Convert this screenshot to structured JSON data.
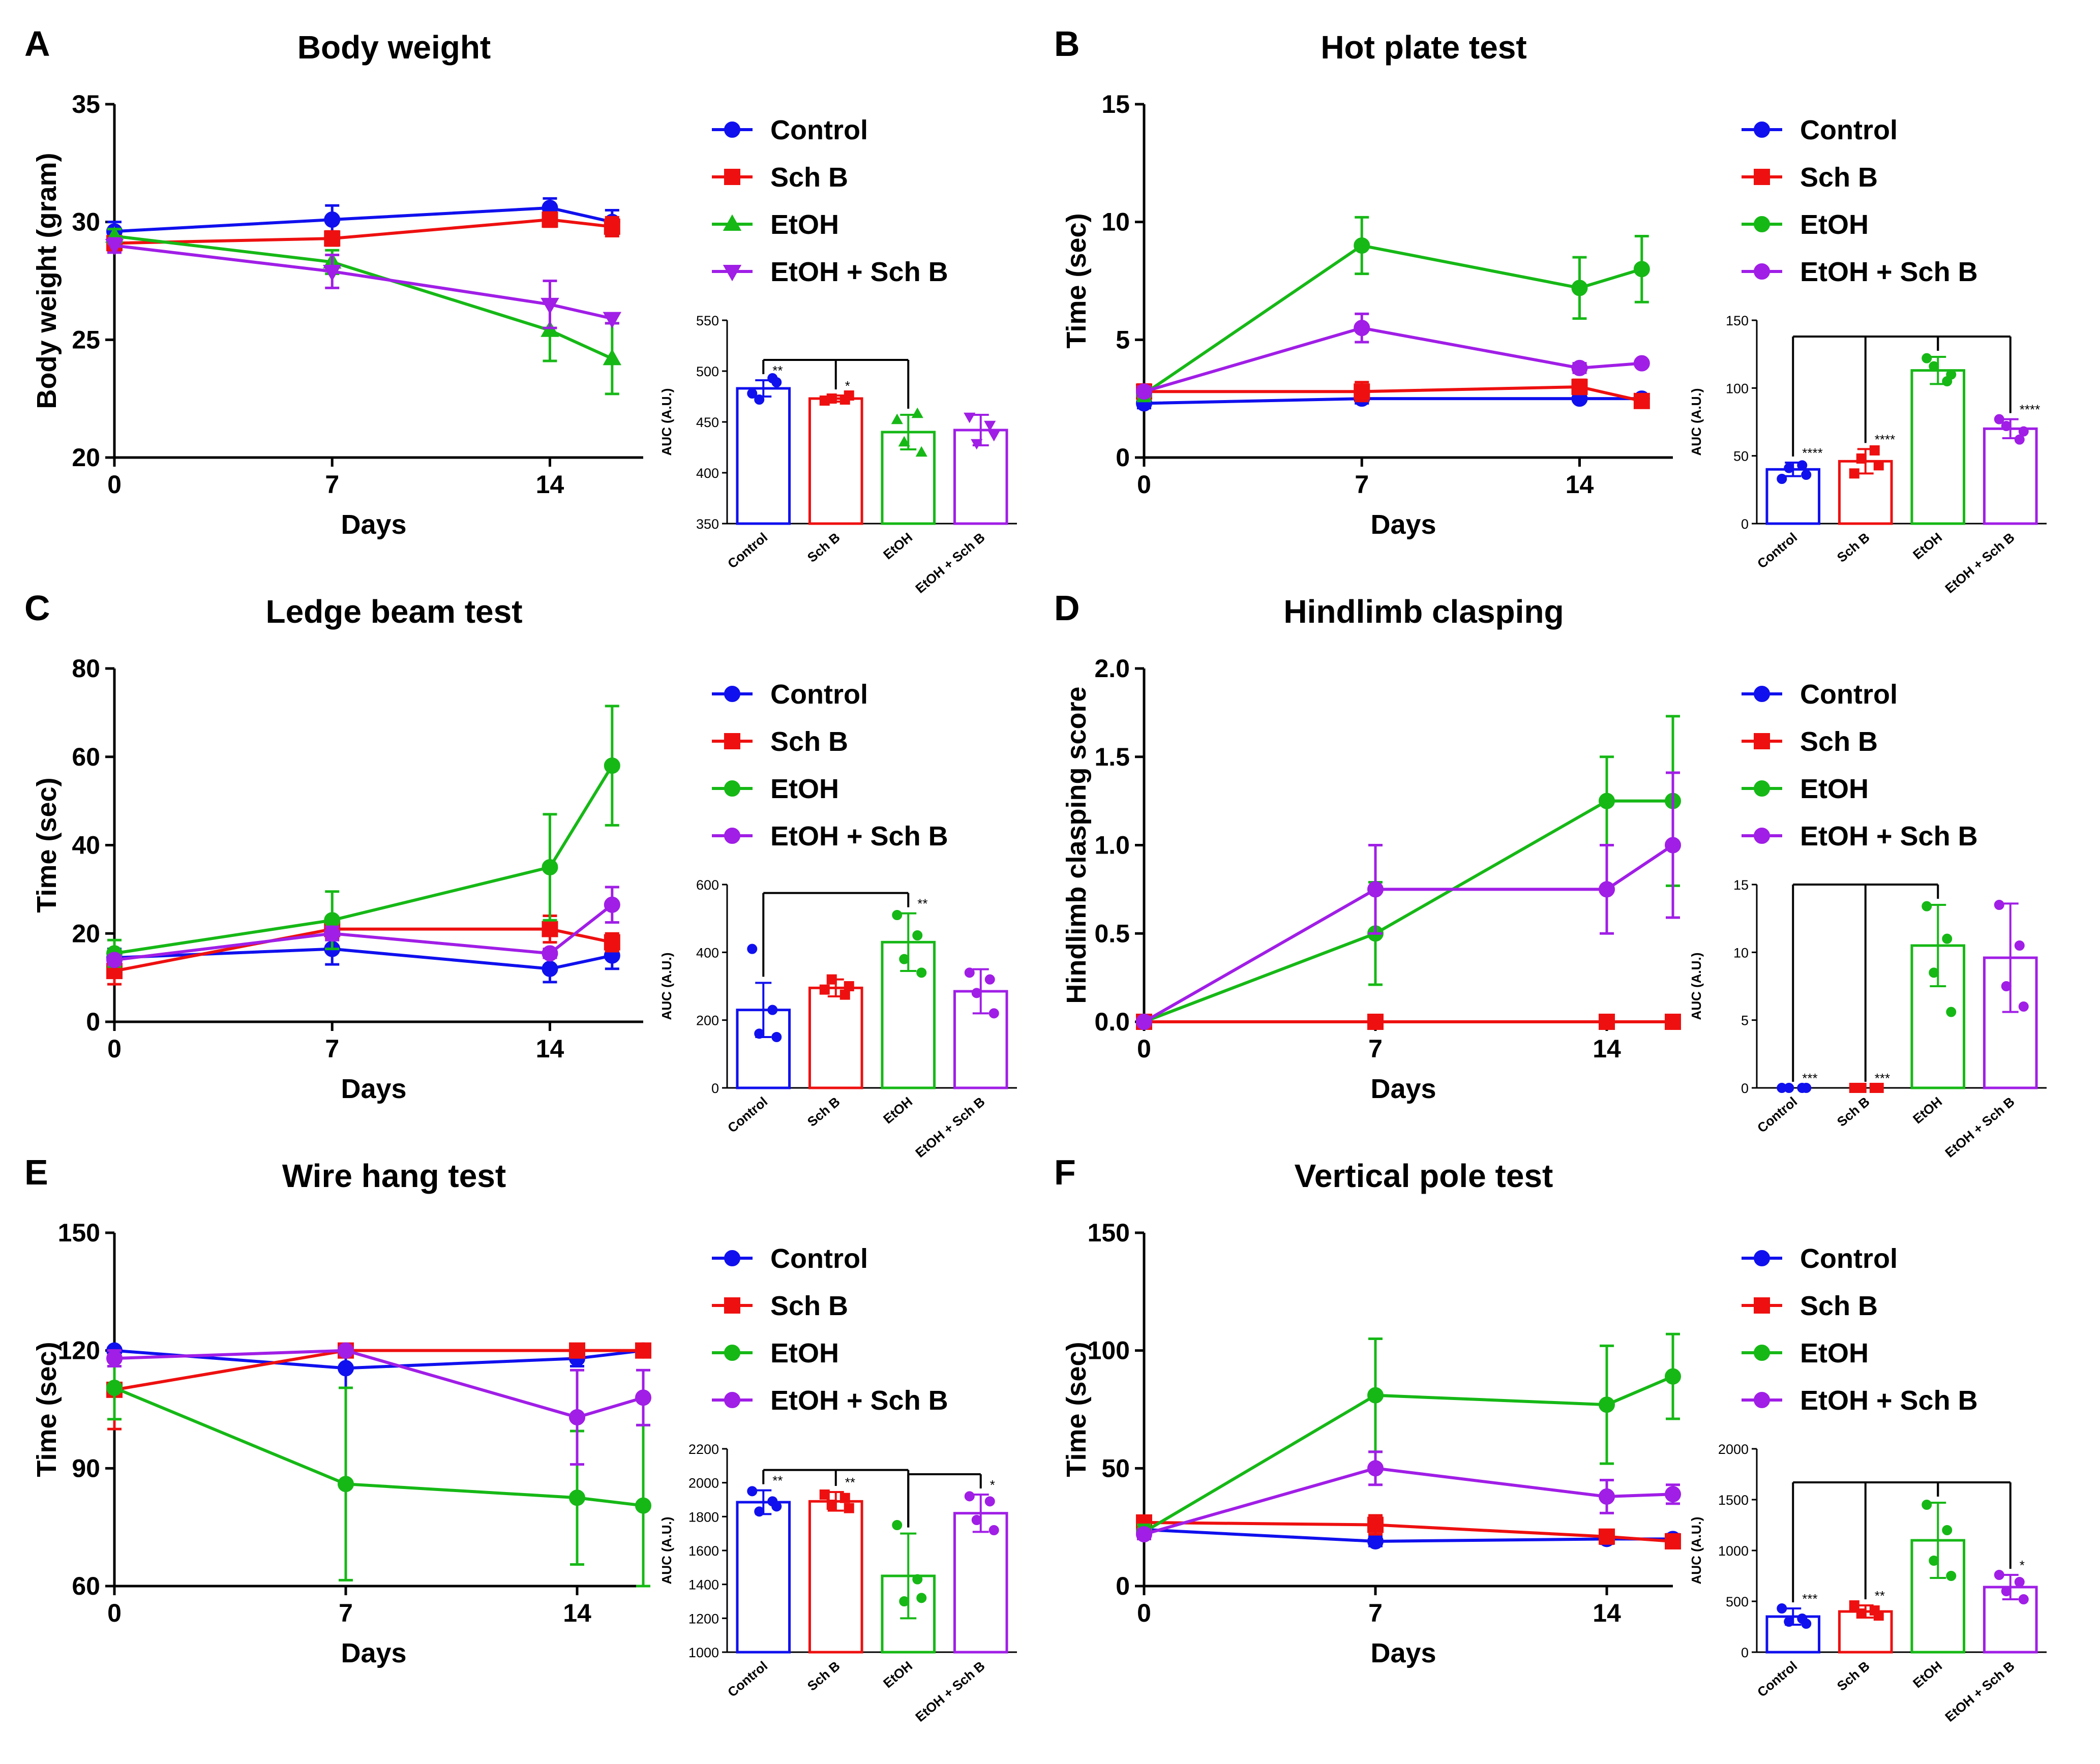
{
  "figure": {
    "description_free": true
  },
  "group_colors": {
    "Control": "#1010ee",
    "Sch B": "#ee1010",
    "EtOH": "#16b816",
    "EtOH + Sch B": "#a01ee6"
  },
  "chart_data": [
    {
      "id": "A",
      "panel_letter": "A",
      "title": "Body weight",
      "type": "line",
      "xlabel": "Days",
      "ylabel": "Body weight (gram)",
      "xlim": [
        0,
        17
      ],
      "ylim": [
        20,
        35
      ],
      "xticks": [
        0,
        7,
        14
      ],
      "yticks": [
        20,
        25,
        30,
        35
      ],
      "markers": {
        "Control": "circle",
        "Sch B": "square",
        "EtOH": "triangle-up",
        "EtOH + Sch B": "triangle-down"
      },
      "legend": [
        "Control",
        "Sch B",
        "EtOH",
        "EtOH + Sch B"
      ],
      "x": [
        0,
        7,
        14,
        16
      ],
      "series": [
        {
          "name": "Control",
          "values": [
            29.6,
            30.1,
            30.6,
            30.0
          ],
          "errors": [
            0.4,
            0.6,
            0.4,
            0.5
          ]
        },
        {
          "name": "Sch B",
          "values": [
            29.1,
            29.3,
            30.1,
            29.8
          ],
          "errors": [
            0.3,
            0.3,
            0.3,
            0.4
          ]
        },
        {
          "name": "EtOH",
          "values": [
            29.4,
            28.3,
            25.4,
            24.2
          ],
          "errors": [
            0.3,
            0.5,
            1.3,
            1.5
          ]
        },
        {
          "name": "EtOH + Sch B",
          "values": [
            29.0,
            27.9,
            26.5,
            25.9
          ],
          "errors": [
            0.3,
            0.7,
            1.0,
            0.2
          ]
        }
      ],
      "bar": {
        "ylabel": "AUC (A.U.)",
        "ylim": [
          350,
          550
        ],
        "yticks": [
          350,
          400,
          450,
          500,
          550
        ],
        "categories": [
          "Control",
          "Sch B",
          "EtOH",
          "EtOH + Sch B"
        ],
        "values": [
          483,
          473,
          440,
          442
        ],
        "errors": [
          8,
          3,
          17,
          15
        ],
        "points": [
          [
            478,
            493,
            472,
            489
          ],
          [
            471,
            472,
            473,
            476
          ],
          [
            452,
            458,
            430,
            420
          ],
          [
            455,
            447,
            429,
            437
          ]
        ],
        "stars": [
          "**",
          "*",
          "",
          ""
        ],
        "brackets": [
          {
            "from": [
              0,
              1
            ],
            "to": 2
          }
        ]
      }
    },
    {
      "id": "B",
      "panel_letter": "B",
      "title": "Hot plate test",
      "type": "line",
      "xlabel": "Days",
      "ylabel": "Time (sec)",
      "xlim": [
        0,
        17
      ],
      "ylim": [
        0,
        15
      ],
      "xticks": [
        0,
        7,
        14
      ],
      "yticks": [
        0,
        5,
        10,
        15
      ],
      "markers": {
        "Control": "circle",
        "Sch B": "square",
        "EtOH": "circle",
        "EtOH + Sch B": "circle"
      },
      "legend": [
        "Control",
        "Sch B",
        "EtOH",
        "EtOH + Sch B"
      ],
      "x": [
        0,
        7,
        14,
        16
      ],
      "series": [
        {
          "name": "Control",
          "values": [
            2.3,
            2.5,
            2.5,
            2.5
          ],
          "errors": [
            0.2,
            0.2,
            0.1,
            0.1
          ]
        },
        {
          "name": "Sch B",
          "values": [
            2.8,
            2.8,
            3.0,
            2.4
          ],
          "errors": [
            0.3,
            0.4,
            0.3,
            0.2
          ]
        },
        {
          "name": "EtOH",
          "values": [
            2.7,
            9.0,
            7.2,
            8.0
          ],
          "errors": [
            0.3,
            1.2,
            1.3,
            1.4
          ]
        },
        {
          "name": "EtOH + Sch B",
          "values": [
            2.8,
            5.5,
            3.8,
            4.0
          ],
          "errors": [
            0.2,
            0.6,
            0.2,
            0.1
          ]
        }
      ],
      "bar": {
        "ylabel": "AUC (A.U.)",
        "ylim": [
          0,
          150
        ],
        "yticks": [
          0,
          50,
          100,
          150
        ],
        "categories": [
          "Control",
          "Sch B",
          "EtOH",
          "EtOH + Sch B"
        ],
        "values": [
          40,
          46,
          113,
          70
        ],
        "errors": [
          5,
          9,
          10,
          7
        ],
        "points": [
          [
            33,
            43,
            41,
            36
          ],
          [
            37,
            54,
            48,
            43
          ],
          [
            122,
            105,
            116,
            110
          ],
          [
            77,
            62,
            72,
            68
          ]
        ],
        "stars": [
          "****",
          "****",
          "",
          "****"
        ],
        "brackets": [
          {
            "from": [
              0,
              1
            ],
            "to": 2
          },
          {
            "from": [
              2
            ],
            "to": 3
          }
        ]
      }
    },
    {
      "id": "C",
      "panel_letter": "C",
      "title": "Ledge beam test",
      "type": "line",
      "xlabel": "Days",
      "ylabel": "Time (sec)",
      "xlim": [
        0,
        17
      ],
      "ylim": [
        0,
        80
      ],
      "xticks": [
        0,
        7,
        14
      ],
      "yticks": [
        0,
        20,
        40,
        60,
        80
      ],
      "markers": {
        "Control": "circle",
        "Sch B": "square",
        "EtOH": "circle",
        "EtOH + Sch B": "circle"
      },
      "legend": [
        "Control",
        "Sch B",
        "EtOH",
        "EtOH + Sch B"
      ],
      "x": [
        0,
        7,
        14,
        16
      ],
      "series": [
        {
          "name": "Control",
          "values": [
            14.5,
            16.5,
            12.0,
            15.0
          ],
          "errors": [
            2.0,
            3.5,
            3.0,
            3.0
          ]
        },
        {
          "name": "Sch B",
          "values": [
            11.5,
            21.0,
            21.0,
            18.0
          ],
          "errors": [
            3.0,
            2.0,
            3.0,
            2.0
          ]
        },
        {
          "name": "EtOH",
          "values": [
            15.5,
            23.0,
            35.0,
            58.0
          ],
          "errors": [
            3.0,
            6.5,
            12.0,
            13.5
          ]
        },
        {
          "name": "EtOH + Sch B",
          "values": [
            14.0,
            20.0,
            15.5,
            26.5
          ],
          "errors": [
            1.0,
            1.5,
            1.0,
            4.0
          ]
        }
      ],
      "bar": {
        "ylabel": "AUC (A.U.)",
        "ylim": [
          0,
          600
        ],
        "yticks": [
          0,
          200,
          400,
          600
        ],
        "categories": [
          "Control",
          "Sch B",
          "EtOH",
          "EtOH + Sch B"
        ],
        "values": [
          230,
          295,
          430,
          285
        ],
        "errors": [
          80,
          25,
          85,
          65
        ],
        "points": [
          [
            410,
            230,
            160,
            150
          ],
          [
            290,
            275,
            320,
            300
          ],
          [
            510,
            450,
            380,
            340
          ],
          [
            340,
            320,
            280,
            220
          ]
        ],
        "stars": [
          "",
          "",
          "**",
          ""
        ],
        "brackets": [
          {
            "from": [
              0
            ],
            "to": 2
          }
        ]
      }
    },
    {
      "id": "D",
      "panel_letter": "D",
      "title": "Hindlimb clasping",
      "type": "line",
      "xlabel": "Days",
      "ylabel": "Hindlimb clasping score",
      "xlim": [
        0,
        16
      ],
      "ylim": [
        0,
        2.0
      ],
      "xticks": [
        0,
        7,
        14
      ],
      "yticks": [
        0.0,
        0.5,
        1.0,
        1.5,
        2.0
      ],
      "markers": {
        "Control": "circle",
        "Sch B": "square",
        "EtOH": "circle",
        "EtOH + Sch B": "circle"
      },
      "legend": [
        "Control",
        "Sch B",
        "EtOH",
        "EtOH + Sch B"
      ],
      "x": [
        0,
        7,
        14,
        16
      ],
      "series": [
        {
          "name": "Control",
          "values": [
            0,
            0,
            0,
            0
          ],
          "errors": [
            0,
            0,
            0,
            0
          ]
        },
        {
          "name": "Sch B",
          "values": [
            0,
            0,
            0,
            0
          ],
          "errors": [
            0,
            0,
            0,
            0
          ]
        },
        {
          "name": "EtOH",
          "values": [
            0,
            0.5,
            1.25,
            1.25
          ],
          "errors": [
            0,
            0.29,
            0.25,
            0.48
          ]
        },
        {
          "name": "EtOH + Sch B",
          "values": [
            0,
            0.75,
            0.75,
            1.0
          ],
          "errors": [
            0,
            0.25,
            0.25,
            0.41
          ]
        }
      ],
      "bar": {
        "ylabel": "AUC (A.U.)",
        "ylim": [
          0,
          15
        ],
        "yticks": [
          0,
          5,
          10,
          15
        ],
        "categories": [
          "Control",
          "Sch B",
          "EtOH",
          "EtOH + Sch B"
        ],
        "values": [
          0,
          0,
          10.5,
          9.6
        ],
        "errors": [
          0,
          0,
          3.0,
          4.0
        ],
        "points": [
          [
            0,
            0,
            0,
            0
          ],
          [
            0,
            0,
            0,
            0
          ],
          [
            13.4,
            11.0,
            8.5,
            5.6
          ],
          [
            13.5,
            10.5,
            7.5,
            6.0
          ]
        ],
        "stars": [
          "***",
          "***",
          "",
          ""
        ],
        "brackets": [
          {
            "from": [
              0,
              1
            ],
            "to": 2
          }
        ]
      }
    },
    {
      "id": "E",
      "panel_letter": "E",
      "title": "Wire hang test",
      "type": "line",
      "xlabel": "Days",
      "ylabel": "Time (sec)",
      "xlim": [
        0,
        16
      ],
      "ylim": [
        60,
        150
      ],
      "xticks": [
        0,
        7,
        14
      ],
      "yticks": [
        60,
        90,
        120,
        150
      ],
      "markers": {
        "Control": "circle",
        "Sch B": "square",
        "EtOH": "circle",
        "EtOH + Sch B": "circle"
      },
      "legend": [
        "Control",
        "Sch B",
        "EtOH",
        "EtOH + Sch B"
      ],
      "x": [
        0,
        7,
        14,
        16
      ],
      "series": [
        {
          "name": "Control",
          "values": [
            120,
            115.5,
            118,
            120
          ],
          "errors": [
            0,
            5,
            2,
            0
          ]
        },
        {
          "name": "Sch B",
          "values": [
            110,
            120,
            120,
            120
          ],
          "errors": [
            10,
            0,
            0,
            0
          ]
        },
        {
          "name": "EtOH",
          "values": [
            110.5,
            86,
            82.5,
            80.5
          ],
          "errors": [
            8,
            24.5,
            17,
            20.5
          ]
        },
        {
          "name": "EtOH + Sch B",
          "values": [
            118,
            120,
            103,
            108
          ],
          "errors": [
            2,
            0,
            12,
            7
          ]
        }
      ],
      "bar": {
        "ylabel": "AUC (A.U.)",
        "ylim": [
          1000,
          2200
        ],
        "yticks": [
          1000,
          1200,
          1400,
          1600,
          1800,
          2000,
          2200
        ],
        "categories": [
          "Control",
          "Sch B",
          "EtOH",
          "EtOH + Sch B"
        ],
        "values": [
          1885,
          1890,
          1450,
          1820
        ],
        "errors": [
          70,
          55,
          250,
          110
        ],
        "points": [
          [
            1950,
            1890,
            1830,
            1860
          ],
          [
            1930,
            1910,
            1870,
            1850
          ],
          [
            1750,
            1430,
            1300,
            1320
          ],
          [
            1920,
            1890,
            1780,
            1720
          ]
        ],
        "stars": [
          "**",
          "**",
          "",
          "*"
        ],
        "brackets": [
          {
            "from": [
              0,
              1
            ],
            "to": 2
          },
          {
            "from": [
              2
            ],
            "to": 3
          }
        ]
      }
    },
    {
      "id": "F",
      "panel_letter": "F",
      "title": "Vertical pole test",
      "type": "line",
      "xlabel": "Days",
      "ylabel": "Time (sec)",
      "xlim": [
        0,
        16
      ],
      "ylim": [
        0,
        150
      ],
      "xticks": [
        0,
        7,
        14
      ],
      "yticks": [
        0,
        50,
        100,
        150
      ],
      "markers": {
        "Control": "circle",
        "Sch B": "square",
        "EtOH": "circle",
        "EtOH + Sch B": "circle"
      },
      "legend": [
        "Control",
        "Sch B",
        "EtOH",
        "EtOH + Sch B"
      ],
      "x": [
        0,
        7,
        14,
        16
      ],
      "series": [
        {
          "name": "Control",
          "values": [
            24,
            19,
            20,
            20
          ],
          "errors": [
            3,
            2,
            2,
            2
          ]
        },
        {
          "name": "Sch B",
          "values": [
            27,
            26,
            21,
            19
          ],
          "errors": [
            2,
            4,
            2,
            2
          ]
        },
        {
          "name": "EtOH",
          "values": [
            23,
            81,
            77,
            89
          ],
          "errors": [
            3,
            24,
            25,
            18
          ]
        },
        {
          "name": "EtOH + Sch B",
          "values": [
            22,
            50,
            38,
            39
          ],
          "errors": [
            2,
            7,
            7,
            4
          ]
        }
      ],
      "bar": {
        "ylabel": "AUC (A.U.)",
        "ylim": [
          0,
          2000
        ],
        "yticks": [
          0,
          500,
          1000,
          1500,
          2000
        ],
        "categories": [
          "Control",
          "Sch B",
          "EtOH",
          "EtOH + Sch B"
        ],
        "values": [
          350,
          400,
          1100,
          640
        ],
        "errors": [
          80,
          60,
          370,
          120
        ],
        "points": [
          [
            430,
            330,
            300,
            280
          ],
          [
            460,
            410,
            380,
            360
          ],
          [
            1450,
            1200,
            900,
            750
          ],
          [
            760,
            690,
            600,
            520
          ]
        ],
        "stars": [
          "***",
          "**",
          "",
          "*"
        ],
        "brackets": [
          {
            "from": [
              0,
              1
            ],
            "to": 2
          },
          {
            "from": [
              2
            ],
            "to": 3
          }
        ]
      }
    }
  ]
}
